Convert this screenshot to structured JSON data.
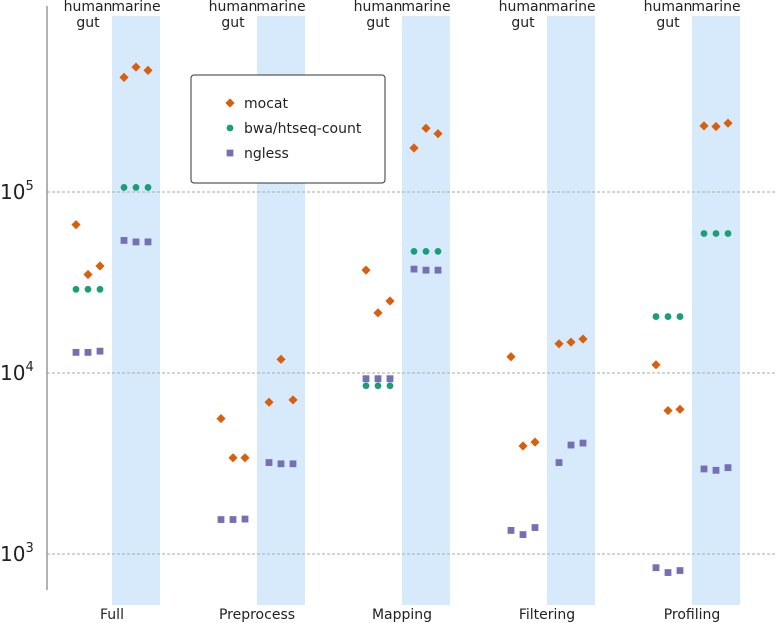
{
  "chart_data": {
    "type": "scatter",
    "y_scale": "log",
    "ylim": [
      700,
      700000
    ],
    "grid": "horizontal dashed at 10^3, 10^4, 10^5",
    "legend_placement": "top-left",
    "categories": [
      "Full",
      "Preprocess",
      "Mapping",
      "Filtering",
      "Profiling"
    ],
    "groups": [
      {
        "line1": "human",
        "line2": "gut"
      },
      {
        "line1": "marine",
        "line2": ""
      }
    ],
    "y_tick_labels": [
      {
        "value": 1000,
        "base": "10",
        "exp": "3"
      },
      {
        "value": 10000,
        "base": "10",
        "exp": "4"
      },
      {
        "value": 100000,
        "base": "10",
        "exp": "5"
      }
    ],
    "highlight_color": "#d6eafb",
    "series": [
      {
        "name": "mocat",
        "marker": "diamond",
        "color": "#d95f0e",
        "values": {
          "Full": {
            "human gut": [
              66000,
              35000,
              39000
            ],
            "marine": [
              430000,
              490000,
              470000
            ]
          },
          "Preprocess": {
            "human gut": [
              5600,
              3400,
              3400
            ],
            "marine": [
              6900,
              11900,
              7100
            ]
          },
          "Mapping": {
            "human gut": [
              37000,
              21500,
              25000
            ],
            "marine": [
              175000,
              225000,
              210000
            ]
          },
          "Filtering": {
            "human gut": [
              12300,
              3950,
              4150
            ],
            "marine": [
              14500,
              14800,
              15400
            ]
          },
          "Profiling": {
            "human gut": [
              11100,
              6200,
              6300
            ],
            "marine": [
              232000,
              230000,
              240000
            ]
          }
        }
      },
      {
        "name": "bwa/htseq-count",
        "marker": "circle",
        "color": "#1b9e77",
        "values": {
          "Full": {
            "human gut": [
              29000,
              29000,
              29000
            ],
            "marine": [
              106000,
              106000,
              106000
            ]
          },
          "Preprocess": {
            "human gut": [],
            "marine": []
          },
          "Mapping": {
            "human gut": [
              8500,
              8500,
              8500
            ],
            "marine": [
              47000,
              47000,
              47000
            ]
          },
          "Filtering": {
            "human gut": [],
            "marine": []
          },
          "Profiling": {
            "human gut": [
              20500,
              20500,
              20500
            ],
            "marine": [
              59000,
              59000,
              59000
            ]
          }
        }
      },
      {
        "name": "ngless",
        "marker": "square",
        "color": "#7570b3",
        "values": {
          "Full": {
            "human gut": [
              13000,
              13000,
              13200
            ],
            "marine": [
              54000,
              53000,
              53000
            ]
          },
          "Preprocess": {
            "human gut": [
              1550,
              1550,
              1560
            ],
            "marine": [
              3200,
              3150,
              3150
            ]
          },
          "Mapping": {
            "human gut": [
              9300,
              9300,
              9300
            ],
            "marine": [
              37500,
              37000,
              37000
            ]
          },
          "Filtering": {
            "human gut": [
              1350,
              1280,
              1400
            ],
            "marine": [
              3200,
              4000,
              4100
            ]
          },
          "Profiling": {
            "human gut": [
              840,
              790,
              810
            ],
            "marine": [
              2950,
              2900,
              3000
            ]
          }
        }
      }
    ]
  }
}
